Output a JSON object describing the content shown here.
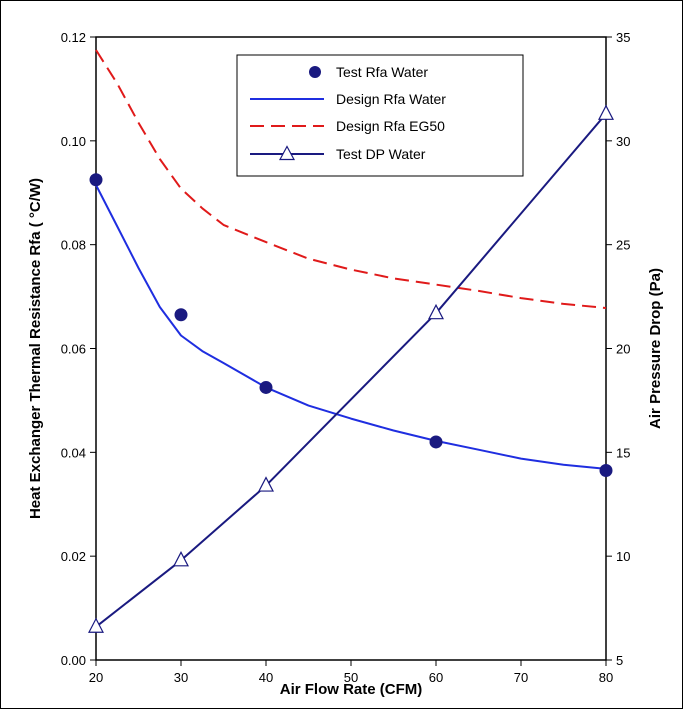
{
  "chart_data": {
    "type": "line",
    "title": "",
    "xlabel": "Air Flow Rate (CFM)",
    "ylabel": "Heat Exchanger Thermal Resistance Rfa (   °C/W)",
    "y2label": "Air Pressure Drop (Pa)",
    "xlim": [
      20,
      80
    ],
    "ylim": [
      0,
      0.12
    ],
    "y2lim": [
      5,
      35
    ],
    "x_ticks": [
      "20",
      "30",
      "40",
      "50",
      "60",
      "70",
      "80"
    ],
    "y_ticks": [
      "0.00",
      "0.02",
      "0.04",
      "0.06",
      "0.08",
      "0.10",
      "0.12"
    ],
    "y2_ticks": [
      "5",
      "10",
      "15",
      "20",
      "25",
      "30",
      "35"
    ],
    "grid": false,
    "legend_position": "top-center",
    "series": [
      {
        "name": "Test Rfa Water",
        "kind": "markers",
        "marker": "filled-circle",
        "axis": "left",
        "color": "#1a1a80",
        "x": [
          20,
          30,
          40,
          60,
          80
        ],
        "y": [
          0.0925,
          0.0665,
          0.0525,
          0.042,
          0.0365
        ]
      },
      {
        "name": "Design Rfa Water",
        "kind": "line",
        "axis": "left",
        "color": "#1f2ee0",
        "dash": "solid",
        "x": [
          20,
          22.5,
          25,
          27.5,
          30,
          32.5,
          35,
          40,
          45,
          50,
          55,
          60,
          65,
          70,
          75,
          80
        ],
        "y": [
          0.0915,
          0.0835,
          0.0755,
          0.068,
          0.0625,
          0.0595,
          0.0572,
          0.0525,
          0.049,
          0.0465,
          0.0442,
          0.0422,
          0.0405,
          0.0388,
          0.0376,
          0.0368
        ]
      },
      {
        "name": "Design Rfa EG50",
        "kind": "line",
        "axis": "left",
        "color": "#e01a1a",
        "dash": "dashed",
        "x": [
          20,
          22.5,
          25,
          27.5,
          30,
          32.5,
          35,
          40,
          45,
          50,
          55,
          60,
          65,
          70,
          75,
          80
        ],
        "y": [
          0.1175,
          0.111,
          0.1035,
          0.0965,
          0.0908,
          0.087,
          0.0838,
          0.0805,
          0.0773,
          0.0752,
          0.0735,
          0.0723,
          0.0711,
          0.0697,
          0.0686,
          0.0678
        ]
      },
      {
        "name": "Test DP Water",
        "kind": "line+markers",
        "marker": "open-triangle",
        "axis": "right",
        "color": "#1a1a80",
        "dash": "solid",
        "x": [
          20,
          30,
          40,
          60,
          80
        ],
        "y": [
          6.6,
          9.8,
          13.4,
          21.7,
          31.3
        ]
      }
    ]
  }
}
